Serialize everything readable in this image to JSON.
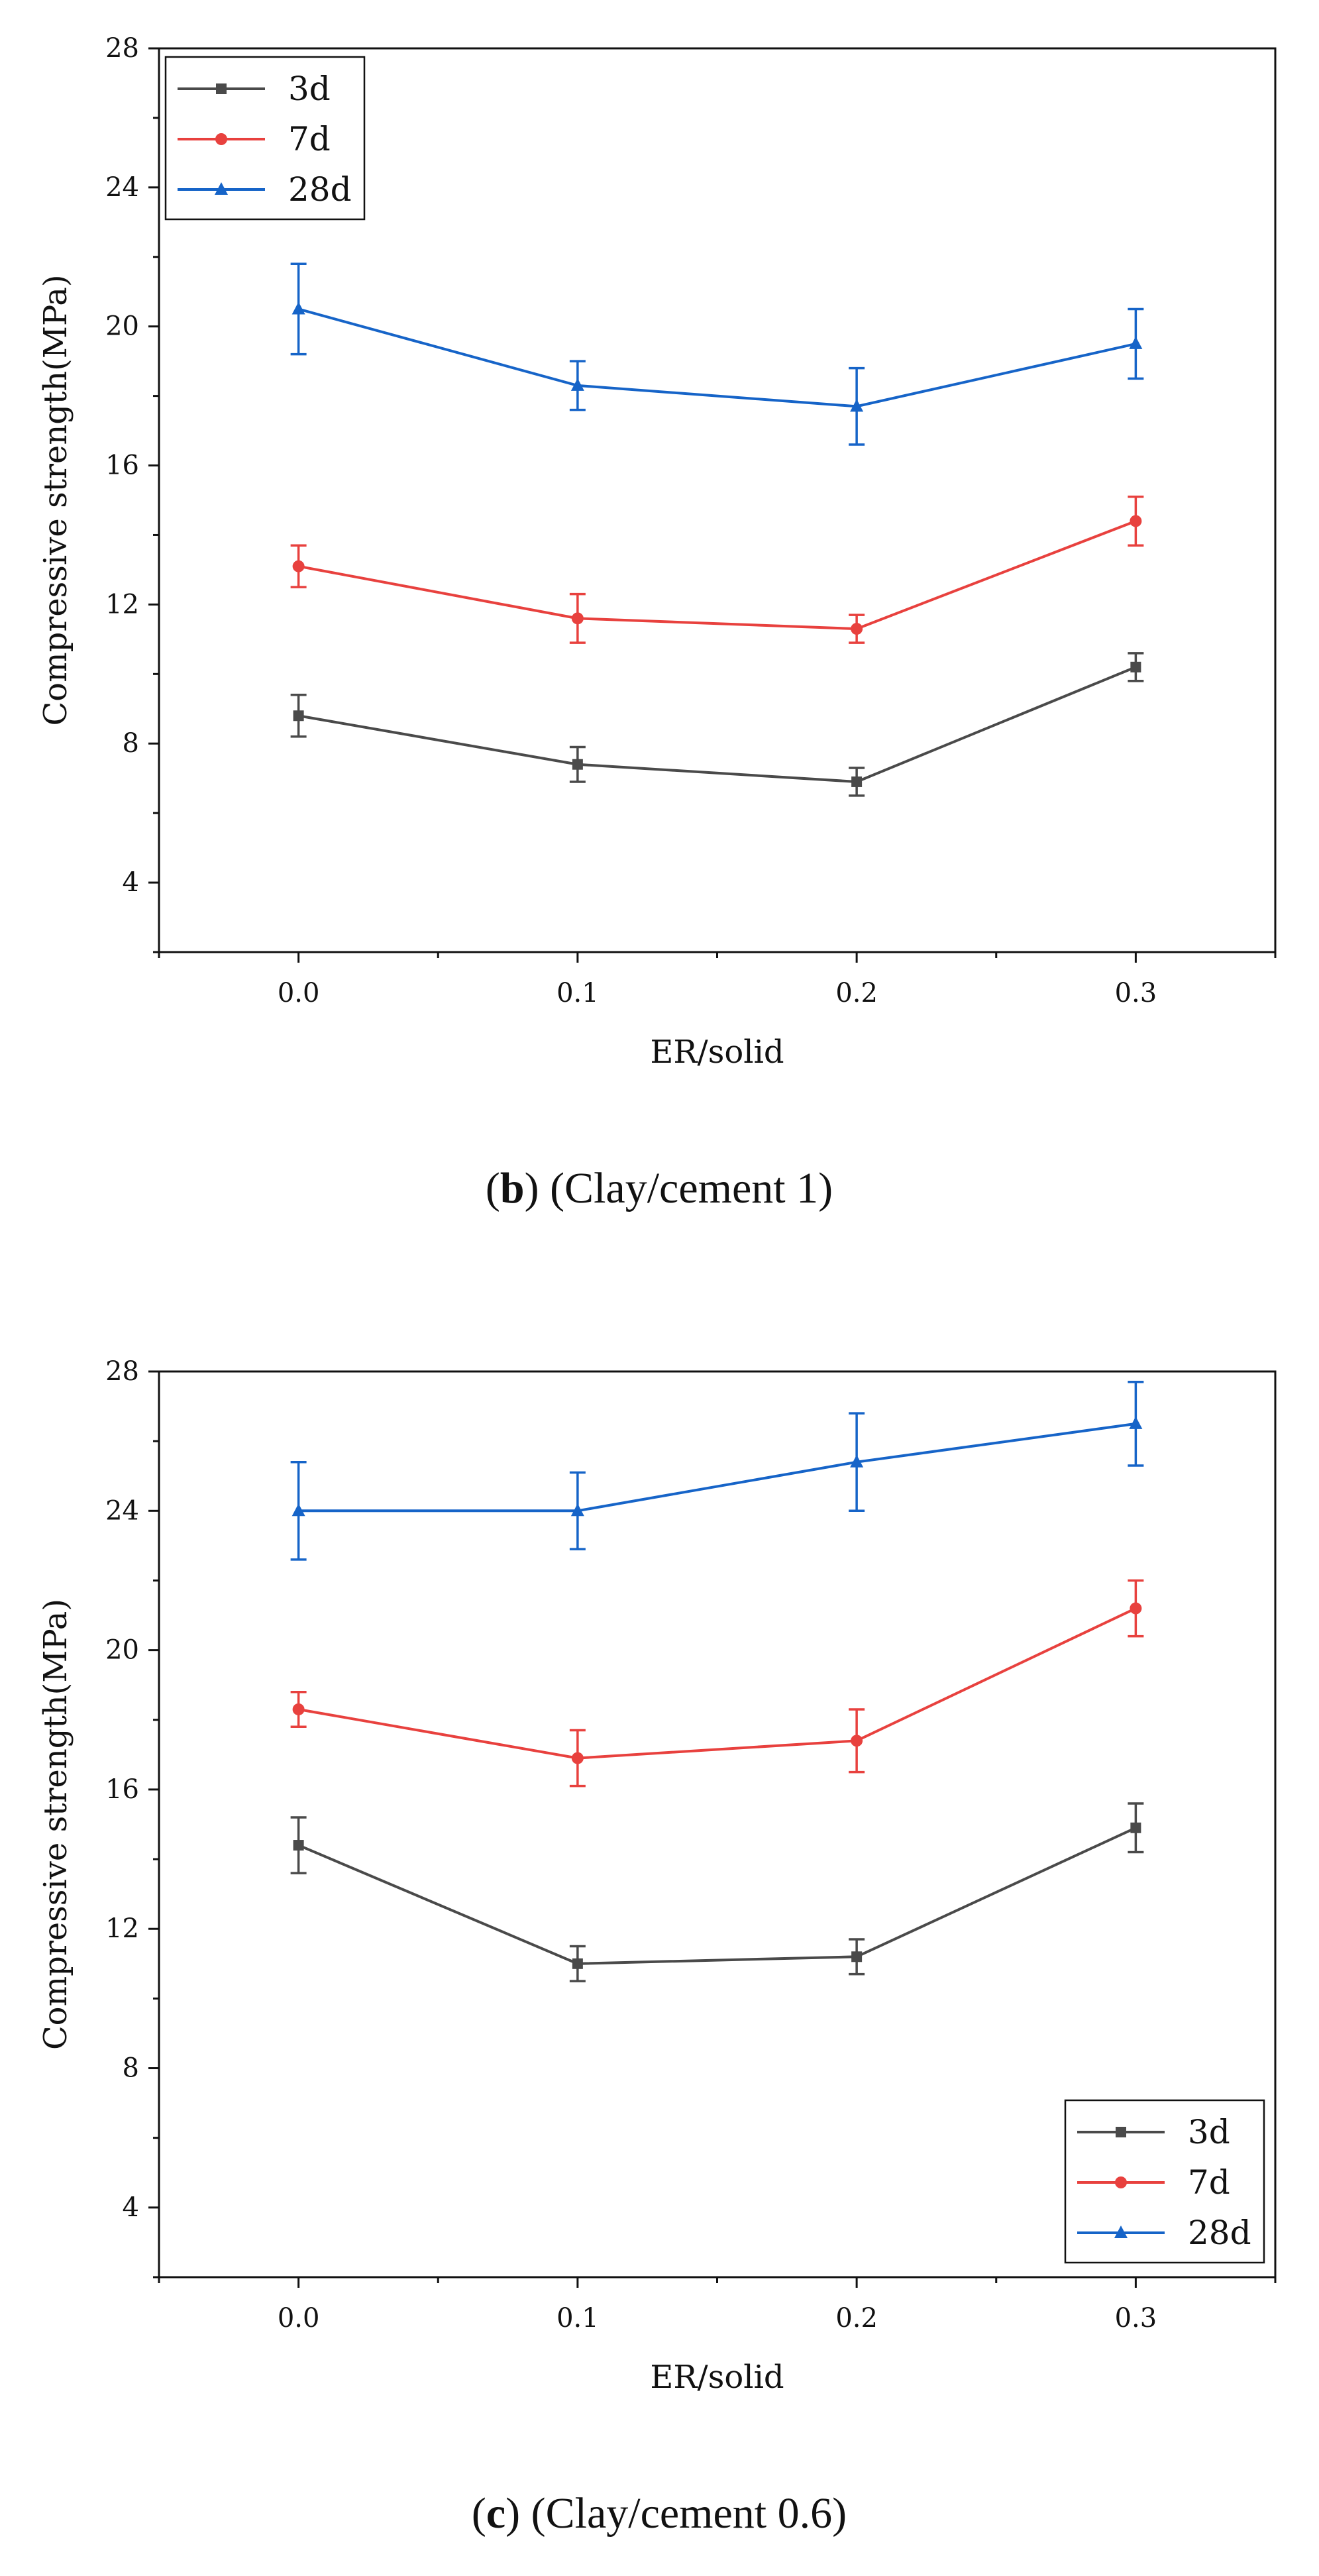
{
  "captions": [
    {
      "letter": "b",
      "text": " (Clay/cement 1)"
    },
    {
      "letter": "c",
      "text": " (Clay/cement 0.6)"
    }
  ],
  "chart_data": [
    {
      "type": "line",
      "panel": "b",
      "title": "",
      "xlabel": "ER/solid",
      "ylabel": "Compressive strength(MPa)",
      "x": [
        0.0,
        0.1,
        0.2,
        0.3
      ],
      "x_tick_labels": [
        "0.0",
        "0.1",
        "0.2",
        "0.3"
      ],
      "xlim": [
        -0.05,
        0.35
      ],
      "ylim": [
        2,
        28
      ],
      "y_ticks": [
        4,
        8,
        12,
        16,
        20,
        24,
        28
      ],
      "grid": false,
      "legend_position": "top-left",
      "series": [
        {
          "name": "3d",
          "color": "#4a4a4a",
          "marker": "square",
          "values": [
            8.8,
            7.4,
            6.9,
            10.2
          ],
          "errors": [
            0.6,
            0.5,
            0.4,
            0.4
          ]
        },
        {
          "name": "7d",
          "color": "#e8413e",
          "marker": "circle",
          "values": [
            13.1,
            11.6,
            11.3,
            14.4
          ],
          "errors": [
            0.6,
            0.7,
            0.4,
            0.7
          ]
        },
        {
          "name": "28d",
          "color": "#1664c8",
          "marker": "triangle",
          "values": [
            20.5,
            18.3,
            17.7,
            19.5
          ],
          "errors": [
            1.3,
            0.7,
            1.1,
            1.0
          ]
        }
      ]
    },
    {
      "type": "line",
      "panel": "c",
      "title": "",
      "xlabel": "ER/solid",
      "ylabel": "Compressive strength(MPa)",
      "x": [
        0.0,
        0.1,
        0.2,
        0.3
      ],
      "x_tick_labels": [
        "0.0",
        "0.1",
        "0.2",
        "0.3"
      ],
      "xlim": [
        -0.05,
        0.35
      ],
      "ylim": [
        2,
        28
      ],
      "y_ticks": [
        4,
        8,
        12,
        16,
        20,
        24,
        28
      ],
      "grid": false,
      "legend_position": "bottom-right",
      "series": [
        {
          "name": "3d",
          "color": "#4a4a4a",
          "marker": "square",
          "values": [
            14.4,
            11.0,
            11.2,
            14.9
          ],
          "errors": [
            0.8,
            0.5,
            0.5,
            0.7
          ]
        },
        {
          "name": "7d",
          "color": "#e8413e",
          "marker": "circle",
          "values": [
            18.3,
            16.9,
            17.4,
            21.2
          ],
          "errors": [
            0.5,
            0.8,
            0.9,
            0.8
          ]
        },
        {
          "name": "28d",
          "color": "#1664c8",
          "marker": "triangle",
          "values": [
            24.0,
            24.0,
            25.4,
            26.5
          ],
          "errors": [
            1.4,
            1.1,
            1.4,
            1.2
          ]
        }
      ]
    }
  ]
}
